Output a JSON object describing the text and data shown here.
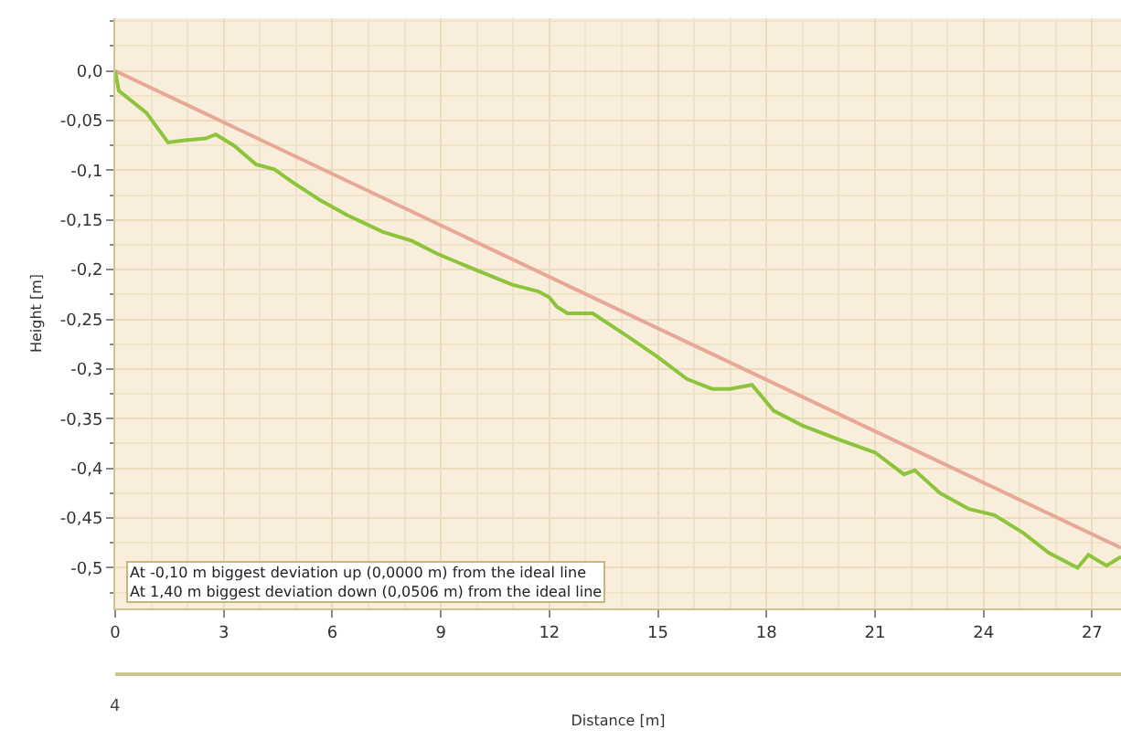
{
  "chart_data": {
    "type": "line",
    "xlabel": "Distance [m]",
    "ylabel": "Height [m]",
    "annotations": [
      "At -0,10 m biggest deviation up (0,0000 m) from the ideal line",
      "At 1,40 m biggest deviation down (0,0506 m) from the ideal line",
      "4"
    ],
    "xlim": [
      0,
      27.8
    ],
    "xticks": [
      0,
      3,
      6,
      9,
      12,
      15,
      18,
      21,
      24,
      27
    ],
    "ylim": [
      -0.541,
      0.053
    ],
    "yticks": [
      {
        "value": 0,
        "label": "0,0"
      },
      {
        "value": -0.05,
        "label": "-0,05"
      },
      {
        "value": -0.1,
        "label": "-0,1"
      },
      {
        "value": -0.15,
        "label": "-0,15"
      },
      {
        "value": -0.2,
        "label": "-0,2"
      },
      {
        "value": -0.25,
        "label": "-0,25"
      },
      {
        "value": -0.3,
        "label": "-0,3"
      },
      {
        "value": -0.35,
        "label": "-0,35"
      },
      {
        "value": -0.4,
        "label": "-0,4"
      },
      {
        "value": -0.45,
        "label": "-0,45"
      },
      {
        "value": -0.5,
        "label": "-0,5"
      }
    ],
    "grid": true,
    "marker": "none",
    "line_style": "solid",
    "series": [
      {
        "color": "#e8a898",
        "x": [
          0,
          27.8
        ],
        "values": [
          0,
          -0.48
        ]
      },
      {
        "color": "#8cc43c",
        "x": [
          0,
          0.1,
          0.86,
          1.46,
          1.87,
          2.5,
          2.78,
          3.28,
          3.89,
          4.4,
          4.9,
          5.66,
          6.4,
          7.4,
          8.2,
          8.9,
          9.95,
          10.96,
          11.7,
          12.0,
          12.2,
          12.5,
          13.2,
          14.2,
          15.0,
          15.8,
          16.5,
          17.0,
          17.6,
          18.2,
          19.0,
          20.0,
          21.0,
          21.8,
          22.1,
          22.8,
          23.6,
          24.3,
          25.1,
          25.8,
          26.6,
          26.9,
          27.4,
          27.8
        ],
        "values": [
          0,
          -0.02,
          -0.042,
          -0.072,
          -0.07,
          -0.068,
          -0.064,
          -0.075,
          -0.094,
          -0.099,
          -0.112,
          -0.13,
          -0.145,
          -0.162,
          -0.171,
          -0.184,
          -0.2,
          -0.215,
          -0.222,
          -0.228,
          -0.237,
          -0.244,
          -0.244,
          -0.268,
          -0.288,
          -0.31,
          -0.32,
          -0.32,
          -0.316,
          -0.342,
          -0.357,
          -0.371,
          -0.384,
          -0.406,
          -0.402,
          -0.425,
          -0.441,
          -0.447,
          -0.465,
          -0.485,
          -0.5,
          -0.487,
          -0.498,
          -0.489
        ]
      }
    ]
  }
}
